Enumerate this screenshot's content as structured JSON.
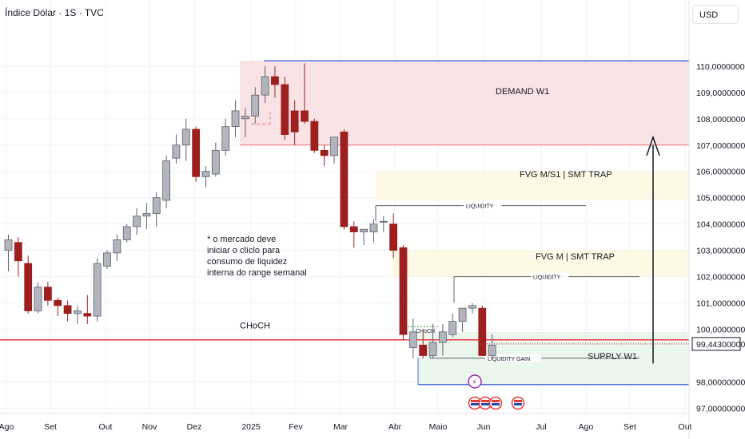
{
  "header": {
    "title": "Índice Dólar · 1S · TVC"
  },
  "currency_button": {
    "label": "USD"
  },
  "colors": {
    "up": "#b2b5be",
    "down": "#9e1f1f",
    "up_border": "#5d606b",
    "demand": "#f8d7da",
    "fvg": "#fdf7d9",
    "supply": "#e3f2e5",
    "choch": "#f23645"
  },
  "chart_data": {
    "type": "candlestick",
    "ylim": [
      96.8,
      111.3
    ],
    "yticks": [
      "110,00000000",
      "109,00000000",
      "108,00000000",
      "107,00000000",
      "106,00000000",
      "105,00000000",
      "104,00000000",
      "103,00000000",
      "102,00000000",
      "101,00000000",
      "100,00000000",
      "99,44300000",
      "98,00000000",
      "97,00000000"
    ],
    "ytick_values": [
      110,
      109,
      108,
      107,
      106,
      105,
      104,
      103,
      102,
      101,
      100,
      99.443,
      98,
      97
    ],
    "current_price": "99,44300000",
    "xticks": [
      "Ago",
      "Set",
      "Out",
      "Nov",
      "Dez",
      "2025",
      "Fev",
      "Mar",
      "Abr",
      "Maio",
      "Jun",
      "Jul",
      "Ago",
      "Set",
      "Out"
    ],
    "candles": [
      {
        "o": 103.0,
        "h": 103.6,
        "l": 102.2,
        "c": 103.4
      },
      {
        "o": 103.3,
        "h": 103.5,
        "l": 102.0,
        "c": 102.6
      },
      {
        "o": 102.5,
        "h": 102.8,
        "l": 100.6,
        "c": 100.7
      },
      {
        "o": 100.7,
        "h": 101.8,
        "l": 100.6,
        "c": 101.6
      },
      {
        "o": 101.6,
        "h": 101.8,
        "l": 100.9,
        "c": 101.1
      },
      {
        "o": 101.1,
        "h": 101.2,
        "l": 100.5,
        "c": 100.9
      },
      {
        "o": 100.9,
        "h": 101.1,
        "l": 100.3,
        "c": 100.6
      },
      {
        "o": 100.6,
        "h": 100.9,
        "l": 100.2,
        "c": 100.7
      },
      {
        "o": 100.6,
        "h": 101.3,
        "l": 100.2,
        "c": 100.5
      },
      {
        "o": 100.5,
        "h": 102.7,
        "l": 100.3,
        "c": 102.5
      },
      {
        "o": 102.4,
        "h": 103.0,
        "l": 102.3,
        "c": 102.9
      },
      {
        "o": 102.9,
        "h": 103.6,
        "l": 102.6,
        "c": 103.4
      },
      {
        "o": 103.4,
        "h": 104.0,
        "l": 103.3,
        "c": 103.9
      },
      {
        "o": 103.9,
        "h": 104.6,
        "l": 103.6,
        "c": 104.3
      },
      {
        "o": 104.3,
        "h": 104.8,
        "l": 103.8,
        "c": 104.4
      },
      {
        "o": 104.4,
        "h": 105.2,
        "l": 103.9,
        "c": 105.0
      },
      {
        "o": 104.9,
        "h": 106.6,
        "l": 104.6,
        "c": 106.4
      },
      {
        "o": 106.5,
        "h": 107.4,
        "l": 106.3,
        "c": 107.0
      },
      {
        "o": 107.0,
        "h": 108.0,
        "l": 106.4,
        "c": 107.6
      },
      {
        "o": 107.6,
        "h": 107.7,
        "l": 105.6,
        "c": 105.8
      },
      {
        "o": 105.8,
        "h": 106.2,
        "l": 105.4,
        "c": 106.0
      },
      {
        "o": 105.9,
        "h": 107.1,
        "l": 105.8,
        "c": 106.8
      },
      {
        "o": 106.8,
        "h": 108.0,
        "l": 106.6,
        "c": 107.7
      },
      {
        "o": 107.7,
        "h": 108.7,
        "l": 107.3,
        "c": 108.3
      },
      {
        "o": 108.0,
        "h": 108.4,
        "l": 107.3,
        "c": 108.1
      },
      {
        "o": 108.1,
        "h": 109.2,
        "l": 107.8,
        "c": 108.9
      },
      {
        "o": 108.9,
        "h": 110.0,
        "l": 108.6,
        "c": 109.6
      },
      {
        "o": 109.6,
        "h": 110.0,
        "l": 108.8,
        "c": 109.3
      },
      {
        "o": 109.3,
        "h": 109.6,
        "l": 107.2,
        "c": 107.4
      },
      {
        "o": 108.3,
        "h": 108.7,
        "l": 107.0,
        "c": 107.5
      },
      {
        "o": 108.3,
        "h": 110.1,
        "l": 107.8,
        "c": 107.9
      },
      {
        "o": 107.9,
        "h": 108.0,
        "l": 106.7,
        "c": 106.8
      },
      {
        "o": 106.8,
        "h": 107.0,
        "l": 106.2,
        "c": 106.6
      },
      {
        "o": 106.6,
        "h": 107.3,
        "l": 106.3,
        "c": 107.3
      },
      {
        "o": 107.5,
        "h": 107.6,
        "l": 103.8,
        "c": 103.9
      },
      {
        "o": 103.9,
        "h": 104.1,
        "l": 103.1,
        "c": 103.7
      },
      {
        "o": 103.7,
        "h": 103.8,
        "l": 103.2,
        "c": 103.8
      },
      {
        "o": 103.7,
        "h": 104.2,
        "l": 103.3,
        "c": 104.0
      },
      {
        "o": 104.1,
        "h": 104.3,
        "l": 103.7,
        "c": 104.1
      },
      {
        "o": 104.0,
        "h": 104.4,
        "l": 102.7,
        "c": 103.0
      },
      {
        "o": 103.1,
        "h": 103.2,
        "l": 99.6,
        "c": 99.8
      },
      {
        "o": 99.3,
        "h": 100.4,
        "l": 98.9,
        "c": 99.9
      },
      {
        "o": 99.4,
        "h": 100.0,
        "l": 98.9,
        "c": 99.0
      },
      {
        "o": 99.0,
        "h": 100.2,
        "l": 98.9,
        "c": 99.5
      },
      {
        "o": 99.5,
        "h": 100.2,
        "l": 99.0,
        "c": 99.9
      },
      {
        "o": 99.8,
        "h": 100.6,
        "l": 99.7,
        "c": 100.3
      },
      {
        "o": 100.3,
        "h": 100.8,
        "l": 99.9,
        "c": 100.8
      },
      {
        "o": 100.8,
        "h": 101.0,
        "l": 100.6,
        "c": 100.9
      },
      {
        "o": 100.8,
        "h": 100.9,
        "l": 99.0,
        "c": 99.0
      },
      {
        "o": 99.0,
        "h": 99.8,
        "l": 98.9,
        "c": 99.4
      }
    ],
    "zones": [
      {
        "label": "DEMAND W1",
        "from": 107.0,
        "to": 110.2
      },
      {
        "label": "FVG M/S1 | SMT TRAP",
        "from": 104.9,
        "to": 106.0
      },
      {
        "label": "FVG M | SMT TRAP",
        "from": 102.0,
        "to": 103.0
      },
      {
        "label": "SUPPLY W1",
        "from": 97.9,
        "to": 99.9
      }
    ],
    "lines": [
      {
        "label": "LIQUIDITY",
        "value": 104.7
      },
      {
        "label": "LIQUIDITY",
        "value": 102.0
      },
      {
        "label": "LIQUIDITY GAIN",
        "value": 98.9
      },
      {
        "label": "CHoCH",
        "value": 99.6
      }
    ],
    "small_labels": [
      "CHoCH"
    ],
    "note": "* o mercado deve\niniciar o clíclo para\nconsumo de liquidez\ninterna do range semanal"
  }
}
